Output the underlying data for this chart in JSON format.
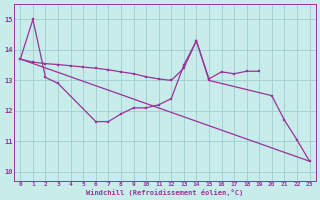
{
  "background_color": "#c8ecea",
  "line_color": "#993399",
  "grid_color": "#9ecece",
  "xlabel": "Windchill (Refroidissement éolien,°C)",
  "ytick_vals": [
    10,
    11,
    12,
    13,
    14,
    15
  ],
  "xtick_vals": [
    0,
    1,
    2,
    3,
    4,
    5,
    6,
    7,
    8,
    9,
    10,
    11,
    12,
    13,
    14,
    15,
    16,
    17,
    18,
    19,
    20,
    21,
    22,
    23
  ],
  "ylim": [
    9.7,
    15.5
  ],
  "xlim": [
    -0.5,
    23.5
  ],
  "line1_x": [
    0,
    1,
    2,
    3,
    6,
    7,
    8,
    9,
    10,
    11,
    12,
    13,
    14,
    15,
    20,
    21,
    22,
    23
  ],
  "line1_y": [
    13.7,
    15.0,
    13.1,
    12.9,
    11.65,
    11.65,
    11.9,
    12.1,
    12.1,
    12.2,
    12.4,
    13.5,
    14.3,
    13.0,
    12.5,
    11.7,
    11.05,
    10.35
  ],
  "line2_x": [
    0,
    1,
    2,
    3,
    4,
    5,
    6,
    7,
    8,
    9,
    10,
    11,
    12,
    13,
    14,
    15,
    16,
    17,
    18,
    19
  ],
  "line2_y": [
    13.7,
    13.6,
    13.55,
    13.52,
    13.48,
    13.44,
    13.4,
    13.35,
    13.28,
    13.22,
    13.12,
    13.05,
    13.0,
    13.4,
    14.3,
    13.05,
    13.28,
    13.22,
    13.3,
    13.3
  ],
  "line3_x": [
    0,
    23
  ],
  "line3_y": [
    13.7,
    10.35
  ]
}
